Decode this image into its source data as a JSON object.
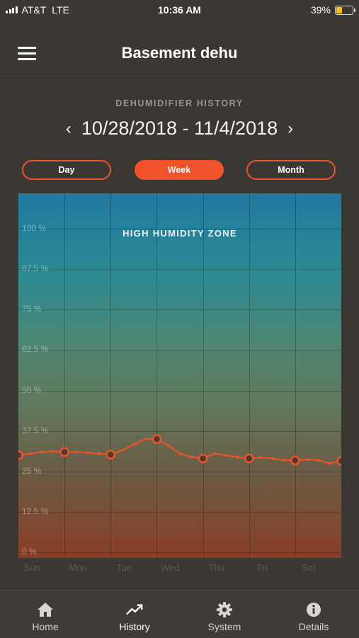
{
  "status_bar": {
    "carrier": "AT&T",
    "network": "LTE",
    "time": "10:36 AM",
    "battery_percent": "39%",
    "battery_level": 0.39,
    "battery_color": "#f2c21a"
  },
  "nav": {
    "title": "Basement dehu",
    "menu_icon": "hamburger-menu-icon"
  },
  "history": {
    "label": "DEHUMIDIFIER HISTORY",
    "date_range": "10/28/2018 - 11/4/2018",
    "prev_glyph": "‹",
    "next_glyph": "›"
  },
  "range_tabs": [
    {
      "label": "Day",
      "active": false
    },
    {
      "label": "Week",
      "active": true
    },
    {
      "label": "Month",
      "active": false
    }
  ],
  "colors": {
    "accent": "#f0522a",
    "background": "#3b3733"
  },
  "chart_data": {
    "type": "line",
    "zone_label": "HIGH HUMIDITY ZONE",
    "y_tick_labels": [
      "100 %",
      "87.5 %",
      "75 %",
      "62.5 %",
      "50 %",
      "37.5 %",
      "25 %",
      "12.5 %",
      "0 %"
    ],
    "y_ticks": [
      100,
      87.5,
      75,
      62.5,
      50,
      37.5,
      25,
      12.5,
      0
    ],
    "ylim": [
      0,
      112.5
    ],
    "categories": [
      "Sun",
      "Mon",
      "Tue",
      "Wed",
      "Thu",
      "Fri",
      "Sat"
    ],
    "x_range": [
      0,
      7
    ],
    "grid": true,
    "series": [
      {
        "color": "#f0522a",
        "x": [
          0,
          0.25,
          0.5,
          0.75,
          1,
          1.25,
          1.5,
          1.75,
          2,
          2.25,
          2.5,
          2.75,
          3,
          3.25,
          3.5,
          3.75,
          4,
          4.25,
          4.5,
          4.75,
          5,
          5.25,
          5.5,
          5.75,
          6,
          6.25,
          6.5,
          6.75,
          7
        ],
        "values": [
          30.0,
          30.5,
          31.0,
          31.2,
          31.0,
          31.0,
          30.8,
          30.5,
          30.2,
          31.5,
          33.3,
          35.0,
          35.0,
          33.0,
          30.5,
          29.5,
          29.0,
          30.5,
          30.0,
          29.4,
          29.0,
          29.3,
          29.0,
          28.5,
          28.4,
          28.7,
          28.5,
          27.5,
          28.2
        ],
        "markers": [
          0,
          1,
          2,
          3,
          4,
          5,
          6,
          7
        ]
      }
    ]
  },
  "tab_bar": [
    {
      "label": "Home",
      "icon": "home-icon",
      "active": false
    },
    {
      "label": "History",
      "icon": "trend-chart-icon",
      "active": true
    },
    {
      "label": "System",
      "icon": "gear-icon",
      "active": false
    },
    {
      "label": "Details",
      "icon": "info-icon",
      "active": false
    }
  ]
}
